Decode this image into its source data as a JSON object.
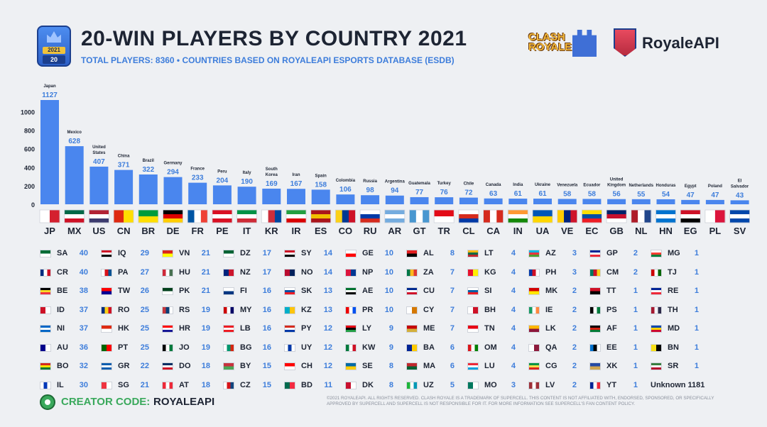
{
  "header": {
    "badge_year": "2021",
    "badge_number": "20",
    "title": "20-WIN PLAYERS BY COUNTRY 2021",
    "subtitle": "TOTAL PLAYERS: 8360 • COUNTRIES BASED ON ROYALEAPI ESPORTS DATABASE (ESDB)",
    "logo_clash": "CLASH ROYALE",
    "logo_brand": "RoyaleAPI"
  },
  "colors": {
    "bar": "#4a86ee",
    "value_label": "#3d7ddb",
    "count_text": "#3d7ddb",
    "code_text": "#1d2433",
    "creator_green": "#3aa95c"
  },
  "chart_data": {
    "type": "bar",
    "categories": [
      "Japan",
      "Mexico",
      "United States",
      "China",
      "Brazil",
      "Germany",
      "France",
      "Peru",
      "Italy",
      "South Korea",
      "Iran",
      "Spain",
      "Colombia",
      "Russia",
      "Argentina",
      "Guatemala",
      "Turkey",
      "Chile",
      "Canada",
      "India",
      "Ukraine",
      "Venezuela",
      "Ecuador",
      "United Kingdom",
      "Netherlands",
      "Honduras",
      "Egypt",
      "Poland",
      "El Salvador"
    ],
    "codes": [
      "JP",
      "MX",
      "US",
      "CN",
      "BR",
      "DE",
      "FR",
      "PE",
      "IT",
      "KR",
      "IR",
      "ES",
      "CO",
      "RU",
      "AR",
      "GT",
      "TR",
      "CL",
      "CA",
      "IN",
      "UA",
      "VE",
      "EC",
      "GB",
      "NL",
      "HN",
      "EG",
      "PL",
      "SV"
    ],
    "values": [
      1127,
      628,
      407,
      371,
      322,
      294,
      233,
      204,
      190,
      169,
      167,
      158,
      106,
      98,
      94,
      77,
      76,
      72,
      63,
      61,
      61,
      58,
      58,
      56,
      55,
      54,
      47,
      47,
      43
    ],
    "yticks": [
      "0",
      "200",
      "400",
      "600",
      "800",
      "1000"
    ],
    "ylim": [
      0,
      1150
    ],
    "flag_colors": [
      [
        "#ffffff",
        "#d4202f"
      ],
      [
        "#006847",
        "#ffffff",
        "#ce1126"
      ],
      [
        "#b22234",
        "#ffffff",
        "#3c3b6e"
      ],
      [
        "#de2910",
        "#ffde00"
      ],
      [
        "#009c3b",
        "#ffdf00"
      ],
      [
        "#000000",
        "#dd0000",
        "#ffce00"
      ],
      [
        "#0055a4",
        "#ffffff",
        "#ef4135"
      ],
      [
        "#d91023",
        "#ffffff",
        "#d91023"
      ],
      [
        "#009246",
        "#ffffff",
        "#ce2b37"
      ],
      [
        "#ffffff",
        "#cd2e3a",
        "#0047a0"
      ],
      [
        "#239f40",
        "#ffffff",
        "#da0000"
      ],
      [
        "#aa151b",
        "#f1bf00",
        "#aa151b"
      ],
      [
        "#fcd116",
        "#003893",
        "#ce1126"
      ],
      [
        "#ffffff",
        "#0039a6",
        "#d52b1e"
      ],
      [
        "#74acdf",
        "#ffffff",
        "#74acdf"
      ],
      [
        "#4997d0",
        "#ffffff",
        "#4997d0"
      ],
      [
        "#e30a17",
        "#ffffff"
      ],
      [
        "#ffffff",
        "#d52b1e",
        "#0039a6"
      ],
      [
        "#d52b1e",
        "#ffffff",
        "#d52b1e"
      ],
      [
        "#ff9933",
        "#ffffff",
        "#138808"
      ],
      [
        "#0057b7",
        "#ffd700"
      ],
      [
        "#ffcc00",
        "#00247d",
        "#cf142b"
      ],
      [
        "#ffdd00",
        "#034ea2",
        "#ed1c24"
      ],
      [
        "#012169",
        "#c8102e",
        "#ffffff"
      ],
      [
        "#ae1c28",
        "#ffffff",
        "#21468b"
      ],
      [
        "#0073cf",
        "#ffffff",
        "#0073cf"
      ],
      [
        "#ce1126",
        "#ffffff",
        "#000000"
      ],
      [
        "#ffffff",
        "#dc143c"
      ],
      [
        "#0047ab",
        "#ffffff",
        "#0047ab"
      ]
    ]
  },
  "table": {
    "columns": [
      [
        {
          "code": "SA",
          "count": "40",
          "c": [
            "#006c35",
            "#ffffff"
          ]
        },
        {
          "code": "CR",
          "count": "40",
          "c": [
            "#002b7f",
            "#ffffff",
            "#ce1126"
          ]
        },
        {
          "code": "BE",
          "count": "38",
          "c": [
            "#000000",
            "#fdda24",
            "#ef3340"
          ]
        },
        {
          "code": "ID",
          "count": "37",
          "c": [
            "#ce1126",
            "#ffffff"
          ]
        },
        {
          "code": "NI",
          "count": "37",
          "c": [
            "#0067c6",
            "#ffffff",
            "#0067c6"
          ]
        },
        {
          "code": "AU",
          "count": "36",
          "c": [
            "#00008b",
            "#ffffff"
          ]
        },
        {
          "code": "BO",
          "count": "32",
          "c": [
            "#d52b1e",
            "#f9e300",
            "#007934"
          ]
        },
        {
          "code": "IL",
          "count": "30",
          "c": [
            "#ffffff",
            "#0038b8",
            "#ffffff"
          ]
        }
      ],
      [
        {
          "code": "IQ",
          "count": "29",
          "c": [
            "#ce1126",
            "#ffffff",
            "#000000"
          ]
        },
        {
          "code": "PA",
          "count": "27",
          "c": [
            "#ffffff",
            "#da121a",
            "#005293"
          ]
        },
        {
          "code": "TW",
          "count": "26",
          "c": [
            "#fe0000",
            "#000095"
          ]
        },
        {
          "code": "RO",
          "count": "25",
          "c": [
            "#002b7f",
            "#fcd116",
            "#ce1126"
          ]
        },
        {
          "code": "HK",
          "count": "25",
          "c": [
            "#de2910",
            "#ffffff"
          ]
        },
        {
          "code": "PT",
          "count": "25",
          "c": [
            "#006600",
            "#ff0000"
          ]
        },
        {
          "code": "GR",
          "count": "22",
          "c": [
            "#0d5eaf",
            "#ffffff",
            "#0d5eaf"
          ]
        },
        {
          "code": "SG",
          "count": "21",
          "c": [
            "#ef3340",
            "#ffffff"
          ]
        }
      ],
      [
        {
          "code": "VN",
          "count": "21",
          "c": [
            "#da251d",
            "#ffff00"
          ]
        },
        {
          "code": "HU",
          "count": "21",
          "c": [
            "#ce2939",
            "#ffffff",
            "#477050"
          ]
        },
        {
          "code": "PK",
          "count": "21",
          "c": [
            "#01411c",
            "#ffffff"
          ]
        },
        {
          "code": "RS",
          "count": "19",
          "c": [
            "#c6363c",
            "#0c4076",
            "#ffffff"
          ]
        },
        {
          "code": "HR",
          "count": "19",
          "c": [
            "#ff0000",
            "#ffffff",
            "#171796"
          ]
        },
        {
          "code": "JO",
          "count": "19",
          "c": [
            "#000000",
            "#ffffff",
            "#007a3d"
          ]
        },
        {
          "code": "DO",
          "count": "18",
          "c": [
            "#002d62",
            "#ffffff",
            "#ce1126"
          ]
        },
        {
          "code": "AT",
          "count": "18",
          "c": [
            "#ed2939",
            "#ffffff",
            "#ed2939"
          ]
        }
      ],
      [
        {
          "code": "DZ",
          "count": "17",
          "c": [
            "#006233",
            "#ffffff"
          ]
        },
        {
          "code": "NZ",
          "count": "17",
          "c": [
            "#00247d",
            "#cc142b"
          ]
        },
        {
          "code": "FI",
          "count": "16",
          "c": [
            "#ffffff",
            "#003580"
          ]
        },
        {
          "code": "MY",
          "count": "16",
          "c": [
            "#cc0001",
            "#ffffff",
            "#010066"
          ]
        },
        {
          "code": "LB",
          "count": "16",
          "c": [
            "#ed1c24",
            "#ffffff",
            "#ed1c24"
          ]
        },
        {
          "code": "BG",
          "count": "16",
          "c": [
            "#ffffff",
            "#00966e",
            "#d62612"
          ]
        },
        {
          "code": "BY",
          "count": "15",
          "c": [
            "#c8313e",
            "#4aa657"
          ]
        },
        {
          "code": "CZ",
          "count": "15",
          "c": [
            "#ffffff",
            "#d7141a",
            "#11457e"
          ]
        }
      ],
      [
        {
          "code": "SY",
          "count": "14",
          "c": [
            "#ce1126",
            "#ffffff",
            "#000000"
          ]
        },
        {
          "code": "NO",
          "count": "14",
          "c": [
            "#ba0c2f",
            "#00205b"
          ]
        },
        {
          "code": "SK",
          "count": "13",
          "c": [
            "#ffffff",
            "#0b4ea2",
            "#ee1c25"
          ]
        },
        {
          "code": "KZ",
          "count": "13",
          "c": [
            "#00afca",
            "#fec50c"
          ]
        },
        {
          "code": "PY",
          "count": "12",
          "c": [
            "#d52b1e",
            "#ffffff",
            "#0038a8"
          ]
        },
        {
          "code": "UY",
          "count": "12",
          "c": [
            "#ffffff",
            "#0038a8",
            "#ffffff"
          ]
        },
        {
          "code": "CH",
          "count": "12",
          "c": [
            "#ff0000",
            "#ffffff"
          ]
        },
        {
          "code": "BD",
          "count": "11",
          "c": [
            "#006a4e",
            "#f42a41"
          ]
        }
      ],
      [
        {
          "code": "GE",
          "count": "10",
          "c": [
            "#ffffff",
            "#ff0000"
          ]
        },
        {
          "code": "NP",
          "count": "10",
          "c": [
            "#dc143c",
            "#003893"
          ]
        },
        {
          "code": "AE",
          "count": "10",
          "c": [
            "#00732f",
            "#ffffff",
            "#000000"
          ]
        },
        {
          "code": "PR",
          "count": "10",
          "c": [
            "#ed0000",
            "#ffffff",
            "#0050f0"
          ]
        },
        {
          "code": "LY",
          "count": "9",
          "c": [
            "#e70013",
            "#000000",
            "#239e46"
          ]
        },
        {
          "code": "KW",
          "count": "9",
          "c": [
            "#007a3d",
            "#ffffff",
            "#ce1126"
          ]
        },
        {
          "code": "SE",
          "count": "8",
          "c": [
            "#006aa7",
            "#fecc00"
          ]
        },
        {
          "code": "DK",
          "count": "8",
          "c": [
            "#c8102e",
            "#ffffff"
          ]
        }
      ],
      [
        {
          "code": "AL",
          "count": "8",
          "c": [
            "#e41e20",
            "#000000"
          ]
        },
        {
          "code": "ZA",
          "count": "7",
          "c": [
            "#007749",
            "#ffb81c",
            "#de3831"
          ]
        },
        {
          "code": "CU",
          "count": "7",
          "c": [
            "#002a8f",
            "#ffffff",
            "#cf142b"
          ]
        },
        {
          "code": "CY",
          "count": "7",
          "c": [
            "#ffffff",
            "#d57800"
          ]
        },
        {
          "code": "ME",
          "count": "7",
          "c": [
            "#c40308",
            "#d4af3a"
          ]
        },
        {
          "code": "BA",
          "count": "6",
          "c": [
            "#002395",
            "#fecb00"
          ]
        },
        {
          "code": "MA",
          "count": "6",
          "c": [
            "#c1272d",
            "#006233"
          ]
        },
        {
          "code": "UZ",
          "count": "5",
          "c": [
            "#1eb53a",
            "#ffffff",
            "#0099b5"
          ]
        }
      ],
      [
        {
          "code": "LT",
          "count": "4",
          "c": [
            "#fdb913",
            "#006a44",
            "#c1272d"
          ]
        },
        {
          "code": "KG",
          "count": "4",
          "c": [
            "#e8112d",
            "#ffef00"
          ]
        },
        {
          "code": "SI",
          "count": "4",
          "c": [
            "#ffffff",
            "#005da4",
            "#ed1c24"
          ]
        },
        {
          "code": "BH",
          "count": "4",
          "c": [
            "#ffffff",
            "#ce1126"
          ]
        },
        {
          "code": "TN",
          "count": "4",
          "c": [
            "#e70013",
            "#ffffff"
          ]
        },
        {
          "code": "OM",
          "count": "4",
          "c": [
            "#db161b",
            "#ffffff",
            "#008000"
          ]
        },
        {
          "code": "LU",
          "count": "4",
          "c": [
            "#ed2939",
            "#ffffff",
            "#00a1de"
          ]
        },
        {
          "code": "MO",
          "count": "3",
          "c": [
            "#00785e",
            "#ffffff"
          ]
        }
      ],
      [
        {
          "code": "AZ",
          "count": "3",
          "c": [
            "#00b5e2",
            "#ef3340",
            "#509e2f"
          ]
        },
        {
          "code": "PH",
          "count": "3",
          "c": [
            "#0038a8",
            "#ce1126",
            "#ffffff"
          ]
        },
        {
          "code": "MK",
          "count": "2",
          "c": [
            "#d20000",
            "#ffe600"
          ]
        },
        {
          "code": "IE",
          "count": "2",
          "c": [
            "#169b62",
            "#ffffff",
            "#ff883e"
          ]
        },
        {
          "code": "LK",
          "count": "2",
          "c": [
            "#ffb700",
            "#8d153a"
          ]
        },
        {
          "code": "QA",
          "count": "2",
          "c": [
            "#ffffff",
            "#8d1b3d"
          ]
        },
        {
          "code": "CG",
          "count": "2",
          "c": [
            "#009543",
            "#fbde4a",
            "#dc241f"
          ]
        },
        {
          "code": "LV",
          "count": "2",
          "c": [
            "#9e3039",
            "#ffffff",
            "#9e3039"
          ]
        }
      ],
      [
        {
          "code": "GP",
          "count": "2",
          "c": [
            "#002395",
            "#ffffff",
            "#ed2939"
          ]
        },
        {
          "code": "CM",
          "count": "2",
          "c": [
            "#007a5e",
            "#ce1126",
            "#fcd116"
          ]
        },
        {
          "code": "TT",
          "count": "1",
          "c": [
            "#ce1126",
            "#000000"
          ]
        },
        {
          "code": "PS",
          "count": "1",
          "c": [
            "#000000",
            "#ffffff",
            "#007a3d"
          ]
        },
        {
          "code": "AF",
          "count": "1",
          "c": [
            "#000000",
            "#d32011",
            "#007a36"
          ]
        },
        {
          "code": "EE",
          "count": "1",
          "c": [
            "#0072ce",
            "#000000",
            "#ffffff"
          ]
        },
        {
          "code": "XK",
          "count": "1",
          "c": [
            "#244aa5",
            "#d0a650"
          ]
        },
        {
          "code": "YT",
          "count": "1",
          "c": [
            "#002395",
            "#ffffff",
            "#ed2939"
          ]
        }
      ],
      [
        {
          "code": "MG",
          "count": "1",
          "c": [
            "#ffffff",
            "#fc3d32",
            "#007e3a"
          ]
        },
        {
          "code": "TJ",
          "count": "1",
          "c": [
            "#cc0000",
            "#ffffff",
            "#006600"
          ]
        },
        {
          "code": "RE",
          "count": "1",
          "c": [
            "#002395",
            "#ffffff",
            "#ed2939"
          ]
        },
        {
          "code": "TH",
          "count": "1",
          "c": [
            "#a51931",
            "#f4f5f8",
            "#2d2a4a"
          ]
        },
        {
          "code": "MD",
          "count": "1",
          "c": [
            "#0046ae",
            "#ffd200",
            "#cc092f"
          ]
        },
        {
          "code": "BN",
          "count": "1",
          "c": [
            "#f7e017",
            "#000000"
          ]
        },
        {
          "code": "SR",
          "count": "1",
          "c": [
            "#377e3f",
            "#ffffff",
            "#b40a2d"
          ]
        },
        {
          "code": "",
          "count": "",
          "c": []
        }
      ]
    ],
    "unknown_label": "Unknown 1181"
  },
  "footer": {
    "creator_label": "CREATOR CODE:",
    "creator_value": "ROYALEAPI",
    "legal": "©2021 ROYALEAPI. ALL RIGHTS RESERVED. CLASH ROYALE IS A TRADEMARK OF SUPERCELL. THIS CONTENT IS NOT AFFILIATED WITH, ENDORSED, SPONSORED, OR SPECIFICALLY APPROVED BY SUPERCELL AND SUPERCELL IS NOT RESPONSIBLE FOR IT. FOR MORE INFORMATION SEE SUPERCELL'S FAN CONTENT POLICY."
  }
}
